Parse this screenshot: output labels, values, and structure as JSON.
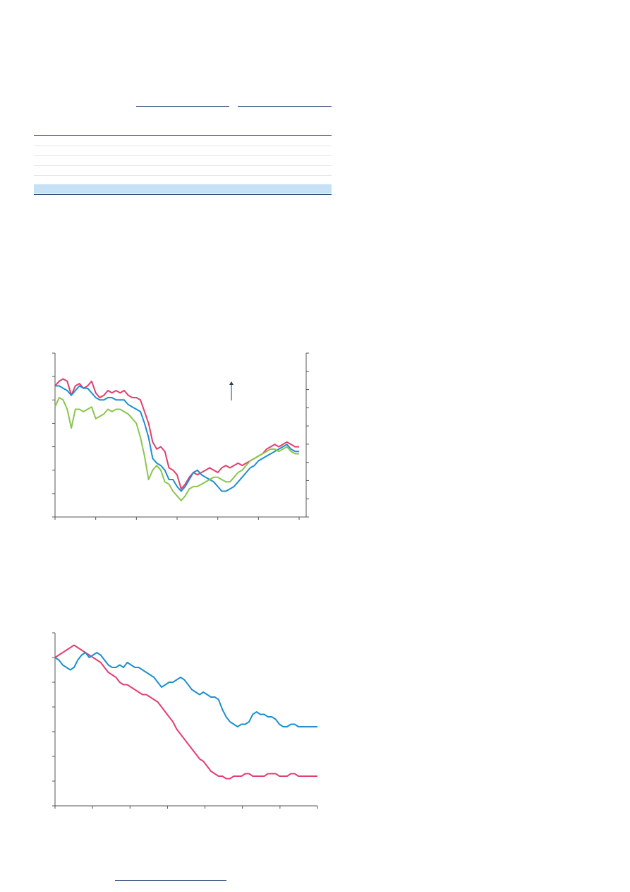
{
  "colors": {
    "rule": "#1f3a6b",
    "header_underline": "#1f3a6b",
    "table_row_line": "#e3e8ee",
    "table_highlight": "#c6e0f5",
    "axis": "#555555",
    "series_red": "#e23f6f",
    "series_blue": "#1e8fd1",
    "series_green": "#8ac64d",
    "annotation_arrow": "#1f3a6b"
  },
  "table": {
    "rows": 5,
    "highlighted_row": 5
  },
  "chart_data": [
    {
      "type": "line",
      "title": "",
      "xlabel": "",
      "ylabel": "",
      "x": [
        0,
        1,
        2,
        3,
        4,
        5,
        6,
        7,
        8,
        9,
        10,
        11,
        12,
        13,
        14,
        15,
        16,
        17,
        18,
        19,
        20,
        21,
        22,
        23,
        24,
        25,
        26,
        27,
        28,
        29,
        30,
        31,
        32,
        33,
        34,
        35,
        36,
        37,
        38,
        39,
        40,
        41,
        42,
        43,
        44,
        45,
        46,
        47,
        48,
        49,
        50,
        51,
        52,
        53,
        54,
        55,
        56,
        57,
        58,
        59,
        60
      ],
      "xlim": [
        0,
        60
      ],
      "ylim": [
        0,
        7
      ],
      "y2lim": [
        0,
        9
      ],
      "grid": false,
      "annotation": "up-arrow",
      "series": [
        {
          "color": "series_red",
          "values": [
            5.6,
            5.8,
            5.9,
            5.8,
            5.2,
            5.6,
            5.7,
            5.5,
            5.6,
            5.8,
            5.3,
            5.1,
            5.2,
            5.4,
            5.3,
            5.4,
            5.3,
            5.4,
            5.2,
            5.1,
            5.1,
            5.0,
            4.5,
            4.0,
            3.2,
            2.9,
            3.0,
            2.8,
            2.1,
            2.0,
            1.8,
            1.2,
            1.4,
            1.7,
            1.9,
            1.8,
            1.9,
            2.0,
            2.1,
            2.0,
            1.9,
            2.1,
            2.2,
            2.1,
            2.2,
            2.3,
            2.2,
            2.3,
            2.4,
            2.5,
            2.6,
            2.7,
            2.9,
            3.0,
            3.1,
            3.0,
            3.1,
            3.2,
            3.1,
            3.0,
            3.0
          ]
        },
        {
          "color": "series_blue",
          "values": [
            5.6,
            5.6,
            5.5,
            5.4,
            5.2,
            5.4,
            5.6,
            5.5,
            5.5,
            5.3,
            5.1,
            5.0,
            5.0,
            5.1,
            5.1,
            5.0,
            5.0,
            5.0,
            4.8,
            4.7,
            4.6,
            4.5,
            4.0,
            3.4,
            2.5,
            2.3,
            2.2,
            2.0,
            1.6,
            1.6,
            1.3,
            1.1,
            1.3,
            1.6,
            1.9,
            2.0,
            1.8,
            1.7,
            1.6,
            1.5,
            1.3,
            1.1,
            1.1,
            1.2,
            1.3,
            1.5,
            1.7,
            1.9,
            2.1,
            2.2,
            2.4,
            2.5,
            2.6,
            2.7,
            2.8,
            2.9,
            3.0,
            3.1,
            2.9,
            2.8,
            2.8
          ]
        },
        {
          "color": "series_green",
          "values": [
            4.7,
            5.1,
            5.0,
            4.6,
            3.8,
            4.6,
            4.6,
            4.5,
            4.6,
            4.7,
            4.2,
            4.3,
            4.4,
            4.6,
            4.5,
            4.6,
            4.6,
            4.5,
            4.4,
            4.2,
            4.0,
            3.4,
            2.6,
            1.6,
            2.0,
            2.2,
            2.0,
            1.5,
            1.4,
            1.1,
            0.9,
            0.7,
            0.9,
            1.2,
            1.3,
            1.3,
            1.4,
            1.5,
            1.6,
            1.7,
            1.7,
            1.6,
            1.5,
            1.5,
            1.7,
            1.9,
            2.0,
            2.2,
            2.4,
            2.5,
            2.6,
            2.7,
            2.8,
            2.9,
            2.9,
            2.8,
            2.9,
            3.0,
            2.8,
            2.7,
            2.7
          ]
        }
      ]
    },
    {
      "type": "line",
      "title": "",
      "xlabel": "",
      "ylabel": "",
      "x": [
        0,
        1,
        2,
        3,
        4,
        5,
        6,
        7,
        8,
        9,
        10,
        11,
        12,
        13,
        14,
        15,
        16,
        17,
        18,
        19,
        20,
        21,
        22,
        23,
        24,
        25,
        26,
        27,
        28,
        29,
        30,
        31,
        32,
        33,
        34,
        35,
        36,
        37,
        38,
        39,
        40,
        41,
        42,
        43,
        44,
        45,
        46,
        47,
        48,
        49,
        50,
        51,
        52,
        53,
        54,
        55,
        56,
        57,
        58,
        59,
        60,
        61,
        62,
        63,
        64,
        65,
        66,
        67,
        68,
        69
      ],
      "xlim": [
        0,
        69
      ],
      "ylim": [
        0,
        7
      ],
      "grid": false,
      "series": [
        {
          "color": "series_red",
          "values": [
            6.0,
            6.1,
            6.2,
            6.3,
            6.4,
            6.5,
            6.4,
            6.3,
            6.2,
            6.1,
            6.0,
            5.9,
            5.8,
            5.6,
            5.4,
            5.3,
            5.2,
            5.0,
            4.9,
            4.9,
            4.8,
            4.7,
            4.6,
            4.5,
            4.5,
            4.4,
            4.3,
            4.2,
            4.0,
            3.8,
            3.6,
            3.4,
            3.1,
            2.9,
            2.7,
            2.5,
            2.3,
            2.1,
            1.9,
            1.8,
            1.6,
            1.4,
            1.3,
            1.2,
            1.2,
            1.1,
            1.1,
            1.2,
            1.2,
            1.2,
            1.3,
            1.3,
            1.2,
            1.2,
            1.2,
            1.2,
            1.3,
            1.3,
            1.3,
            1.2,
            1.2,
            1.2,
            1.3,
            1.3,
            1.2,
            1.2,
            1.2,
            1.2,
            1.2,
            1.2
          ]
        },
        {
          "color": "series_blue",
          "values": [
            6.0,
            5.9,
            5.7,
            5.6,
            5.5,
            5.6,
            5.9,
            6.1,
            6.2,
            6.0,
            6.1,
            6.2,
            6.1,
            5.9,
            5.7,
            5.6,
            5.6,
            5.7,
            5.6,
            5.8,
            5.7,
            5.6,
            5.6,
            5.5,
            5.4,
            5.3,
            5.2,
            5.0,
            4.8,
            4.9,
            5.0,
            5.0,
            5.1,
            5.2,
            5.1,
            4.9,
            4.7,
            4.6,
            4.5,
            4.6,
            4.5,
            4.4,
            4.4,
            4.3,
            3.9,
            3.6,
            3.4,
            3.3,
            3.2,
            3.3,
            3.3,
            3.4,
            3.7,
            3.8,
            3.7,
            3.7,
            3.6,
            3.6,
            3.5,
            3.3,
            3.2,
            3.2,
            3.3,
            3.3,
            3.2,
            3.2,
            3.2,
            3.2,
            3.2,
            3.2
          ]
        }
      ]
    }
  ]
}
